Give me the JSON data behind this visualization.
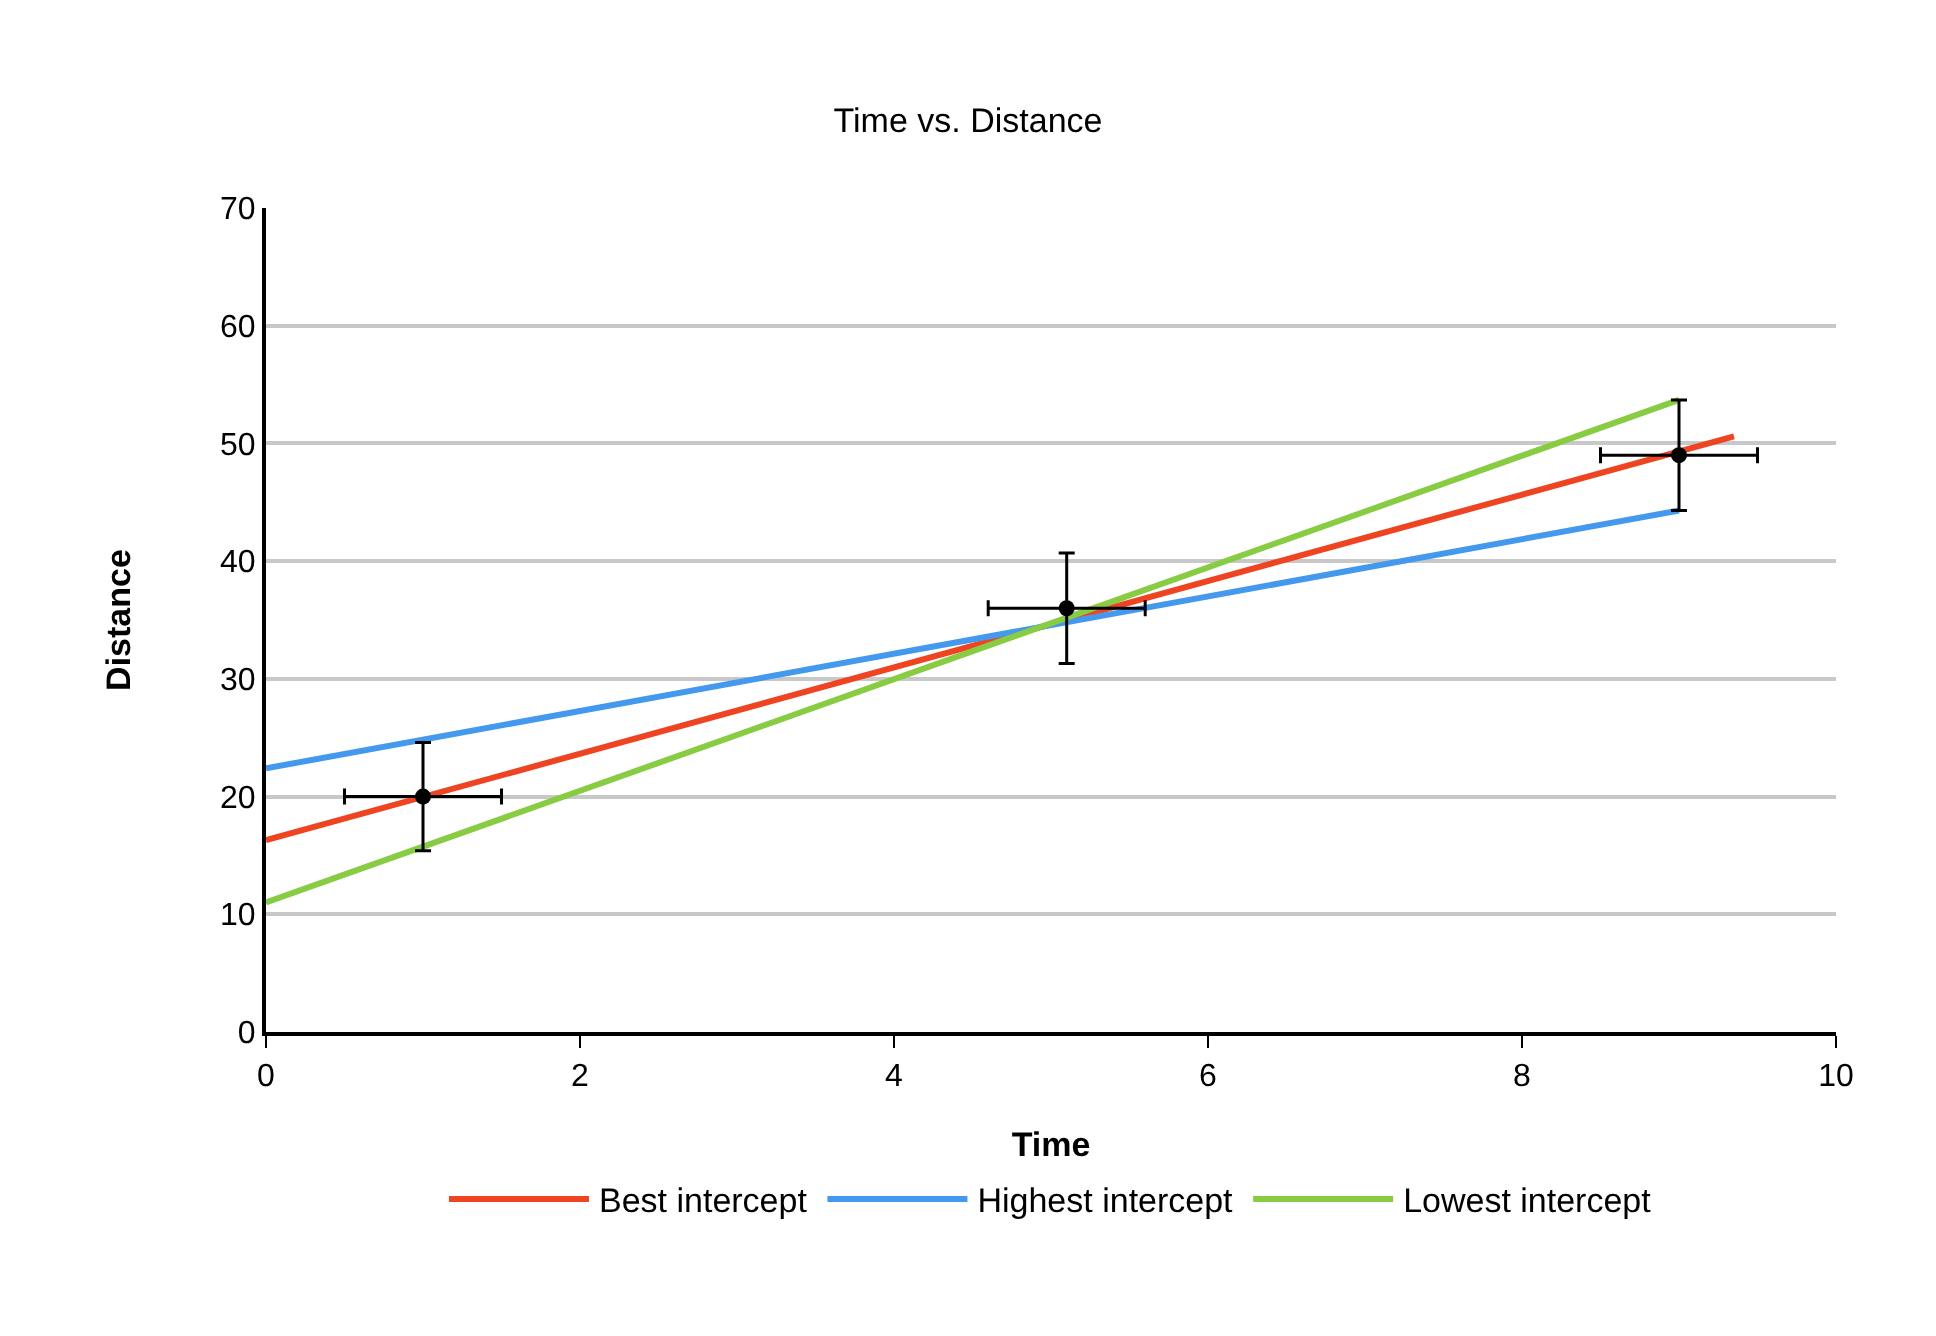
{
  "chart_data": {
    "type": "scatter",
    "title": "Time vs. Distance",
    "xlabel": "Time",
    "ylabel": "Distance",
    "xlim": [
      0,
      10
    ],
    "xticks": [
      0,
      2,
      4,
      6,
      8,
      10
    ],
    "ylim": [
      0,
      70
    ],
    "yticks": [
      0,
      10,
      20,
      30,
      40,
      50,
      60,
      70
    ],
    "grid": "y",
    "legend": "bottom",
    "marker": "circle",
    "series": [
      {
        "type": "scatter",
        "color": "#000000",
        "x": [
          1,
          5.1,
          9
        ],
        "values": [
          20,
          36,
          49
        ],
        "errors": [
          4.6,
          4.7,
          4.7
        ],
        "xerrors": [
          0.5,
          0.5,
          0.5
        ]
      },
      {
        "type": "line",
        "name": "Best intercept",
        "color": "#ee4422",
        "x": [
          0,
          9.35
        ],
        "values": [
          16.3,
          50.6
        ],
        "marker": "none"
      },
      {
        "type": "line",
        "name": "Highest intercept",
        "color": "#4499ee",
        "x": [
          0,
          9
        ],
        "values": [
          22.4,
          44.3
        ],
        "marker": "none"
      },
      {
        "type": "line",
        "name": "Lowest intercept",
        "color": "#88cc44",
        "x": [
          0,
          9
        ],
        "values": [
          11,
          53.7
        ],
        "marker": "none"
      }
    ]
  }
}
